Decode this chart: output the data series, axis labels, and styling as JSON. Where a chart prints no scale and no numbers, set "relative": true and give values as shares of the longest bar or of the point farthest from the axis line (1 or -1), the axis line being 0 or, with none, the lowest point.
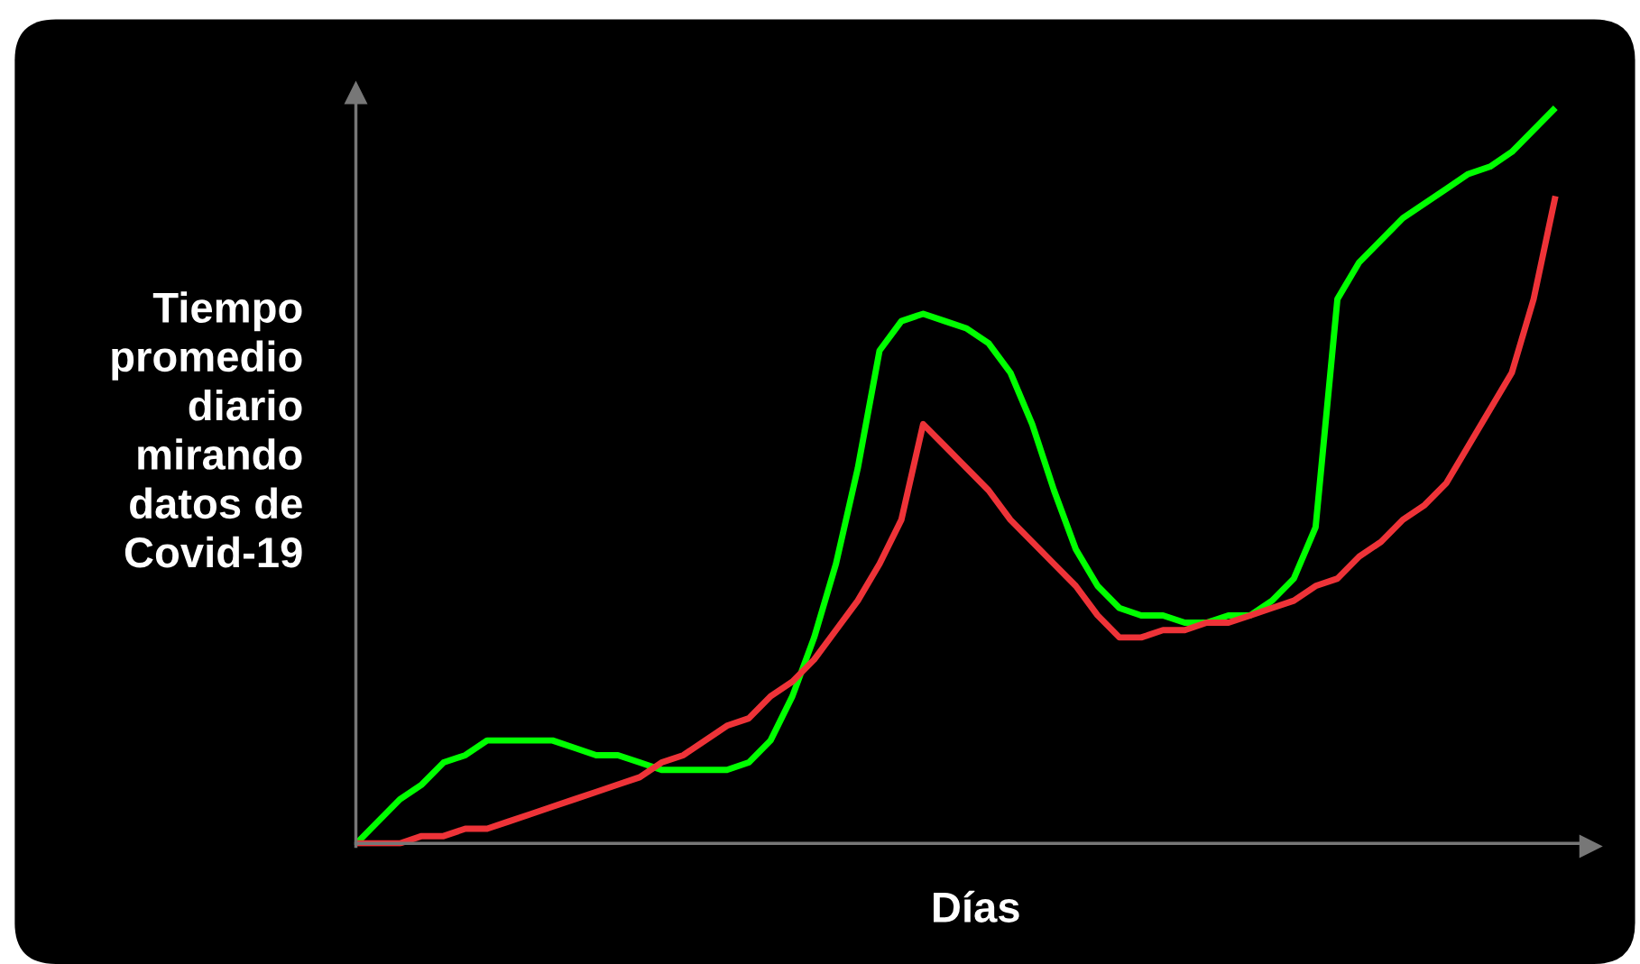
{
  "chart_data": {
    "type": "line",
    "relative": true,
    "xlabel": "Días",
    "ylabel": "Tiempo\npromedio\ndiario\nmirando\ndatos de\nCovid-19",
    "categories": [
      null,
      null,
      null,
      null,
      null,
      null,
      null,
      null,
      null,
      null,
      null,
      null,
      null,
      null,
      null,
      null,
      null,
      null,
      null,
      null,
      null,
      null,
      null,
      null,
      null,
      null,
      null,
      null,
      null,
      null,
      null,
      null,
      null,
      null,
      null,
      null,
      null,
      null,
      null,
      null,
      null,
      null,
      null,
      null,
      null,
      null,
      null,
      null,
      null,
      null,
      null,
      null,
      null,
      null,
      null,
      null
    ],
    "series": [
      {
        "color": "#00ff00",
        "values": [
          0,
          0.03,
          0.06,
          0.08,
          0.11,
          0.12,
          0.14,
          0.14,
          0.14,
          0.14,
          0.13,
          0.12,
          0.12,
          0.11,
          0.1,
          0.1,
          0.1,
          0.1,
          0.11,
          0.14,
          0.2,
          0.28,
          0.38,
          0.51,
          0.67,
          0.71,
          0.72,
          0.71,
          0.7,
          0.68,
          0.64,
          0.57,
          0.48,
          0.4,
          0.35,
          0.32,
          0.31,
          0.31,
          0.3,
          0.3,
          0.31,
          0.31,
          0.33,
          0.36,
          0.43,
          0.74,
          0.79,
          0.82,
          0.85,
          0.87,
          0.89,
          0.91,
          0.92,
          0.94,
          0.97,
          1
        ]
      },
      {
        "color": "#ee3338",
        "values": [
          0,
          0,
          0,
          0.01,
          0.01,
          0.02,
          0.02,
          0.03,
          0.04,
          0.05,
          0.06,
          0.07,
          0.08,
          0.09,
          0.11,
          0.12,
          0.14,
          0.16,
          0.17,
          0.2,
          0.22,
          0.25,
          0.29,
          0.33,
          0.38,
          0.44,
          0.57,
          0.54,
          0.51,
          0.48,
          0.44,
          0.41,
          0.38,
          0.35,
          0.31,
          0.28,
          0.28,
          0.29,
          0.29,
          0.3,
          0.3,
          0.31,
          0.32,
          0.33,
          0.35,
          0.36,
          0.39,
          0.41,
          0.44,
          0.46,
          0.49,
          0.54,
          0.59,
          0.64,
          0.74,
          0.88
        ]
      }
    ],
    "marker": "none",
    "line_style": "solid"
  }
}
